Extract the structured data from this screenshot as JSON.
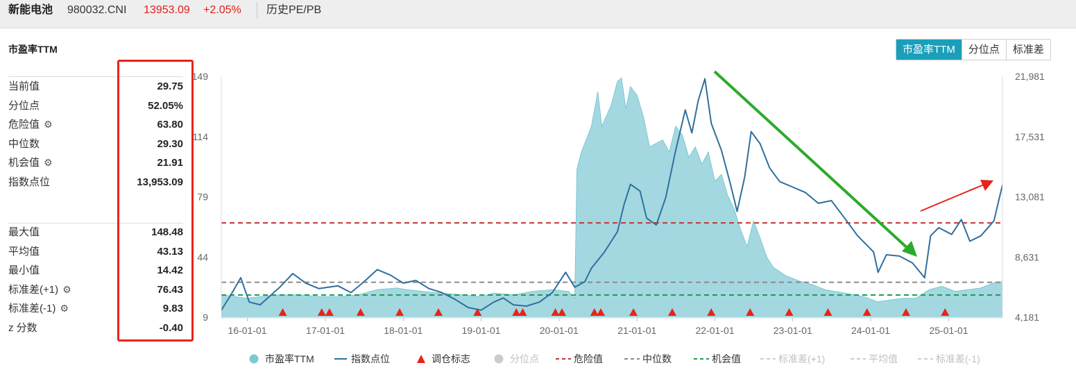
{
  "header": {
    "name": "新能电池",
    "code": "980032.CNI",
    "price": "13953.09",
    "change": "+2.05%",
    "link": "历史PE/PB"
  },
  "panel": {
    "title": "市盈率TTM",
    "stats_top": [
      {
        "label": "当前值",
        "value": "29.75",
        "gear": false
      },
      {
        "label": "分位点",
        "value": "52.05%",
        "gear": false
      },
      {
        "label": "危险值",
        "value": "63.80",
        "gear": true
      },
      {
        "label": "中位数",
        "value": "29.30",
        "gear": false
      },
      {
        "label": "机会值",
        "value": "21.91",
        "gear": true
      },
      {
        "label": "指数点位",
        "value": "13,953.09",
        "gear": false
      }
    ],
    "stats_bottom": [
      {
        "label": "最大值",
        "value": "148.48",
        "gear": false
      },
      {
        "label": "平均值",
        "value": "43.13",
        "gear": false
      },
      {
        "label": "最小值",
        "value": "14.42",
        "gear": false
      },
      {
        "label": "标准差(+1)",
        "value": "76.43",
        "gear": true
      },
      {
        "label": "标准差(-1)",
        "value": "9.83",
        "gear": true
      },
      {
        "label": "z 分数",
        "value": "-0.40",
        "gear": false
      }
    ]
  },
  "tabs": [
    {
      "label": "市盈率TTM",
      "active": true
    },
    {
      "label": "分位点",
      "active": false
    },
    {
      "label": "标准差",
      "active": false
    }
  ],
  "icons": {
    "gear": "gear-icon"
  },
  "colors": {
    "pe_fill": "#9fd6de",
    "pe_line": "#7cc8d3",
    "index_line": "#2e6f9e",
    "danger": "#c23531",
    "median": "#8a8a8a",
    "opportunity": "#1f9a55",
    "marker": "#e8231b",
    "accent": "#1a9fba",
    "highlight_box": "#e8231b",
    "arrow_down": "#2bab2b",
    "arrow_up": "#e8231b"
  },
  "chart_data": {
    "type": "area",
    "x_ticks": [
      "16-01-01",
      "17-01-01",
      "18-01-01",
      "19-01-01",
      "20-01-01",
      "21-01-01",
      "22-01-01",
      "23-01-01",
      "24-01-01",
      "25-01-01"
    ],
    "x_range": [
      "2015-09-01",
      "2025-09-10"
    ],
    "y_left": {
      "ticks": [
        "149",
        "114",
        "79",
        "44",
        "9"
      ],
      "range": [
        9,
        149
      ]
    },
    "y_right": {
      "ticks": [
        "21,981",
        "17,531",
        "13,081",
        "8,631",
        "4,181"
      ],
      "range": [
        4181,
        21981
      ]
    },
    "reference_lines": [
      {
        "name": "危险值",
        "value": 63.8,
        "style": "dashed"
      },
      {
        "name": "中位数",
        "value": 29.3,
        "style": "dashed"
      },
      {
        "name": "机会值",
        "value": 21.91,
        "style": "dashed"
      }
    ],
    "series": [
      {
        "name": "市盈率TTM",
        "axis": "left",
        "kind": "area",
        "points": [
          [
            "2015-09-01",
            22
          ],
          [
            "2015-11-01",
            21
          ],
          [
            "2016-01-01",
            20
          ],
          [
            "2016-03-01",
            21
          ],
          [
            "2016-06-01",
            22
          ],
          [
            "2016-09-01",
            22
          ],
          [
            "2016-12-01",
            21
          ],
          [
            "2017-03-01",
            21
          ],
          [
            "2017-06-01",
            22
          ],
          [
            "2017-09-01",
            25
          ],
          [
            "2017-12-01",
            26
          ],
          [
            "2018-01-15",
            25
          ],
          [
            "2018-04-01",
            24
          ],
          [
            "2018-07-01",
            23
          ],
          [
            "2018-10-01",
            22
          ],
          [
            "2019-01-01",
            21
          ],
          [
            "2019-03-01",
            23
          ],
          [
            "2019-06-01",
            22
          ],
          [
            "2019-09-01",
            24
          ],
          [
            "2019-12-01",
            25
          ],
          [
            "2020-02-15",
            24
          ],
          [
            "2020-03-15",
            20
          ],
          [
            "2020-03-25",
            95
          ],
          [
            "2020-04-15",
            105
          ],
          [
            "2020-06-01",
            120
          ],
          [
            "2020-07-01",
            140
          ],
          [
            "2020-07-20",
            120
          ],
          [
            "2020-09-01",
            132
          ],
          [
            "2020-10-01",
            146
          ],
          [
            "2020-10-20",
            148
          ],
          [
            "2020-11-10",
            130
          ],
          [
            "2020-12-01",
            143
          ],
          [
            "2021-01-01",
            138
          ],
          [
            "2021-02-01",
            125
          ],
          [
            "2021-03-01",
            108
          ],
          [
            "2021-05-01",
            112
          ],
          [
            "2021-06-01",
            105
          ],
          [
            "2021-07-01",
            120
          ],
          [
            "2021-08-01",
            115
          ],
          [
            "2021-09-01",
            102
          ],
          [
            "2021-10-01",
            108
          ],
          [
            "2021-11-01",
            98
          ],
          [
            "2021-12-01",
            105
          ],
          [
            "2022-01-01",
            88
          ],
          [
            "2022-02-01",
            92
          ],
          [
            "2022-03-01",
            80
          ],
          [
            "2022-04-01",
            72
          ],
          [
            "2022-05-01",
            60
          ],
          [
            "2022-06-01",
            50
          ],
          [
            "2022-07-01",
            65
          ],
          [
            "2022-08-01",
            55
          ],
          [
            "2022-09-01",
            44
          ],
          [
            "2022-10-01",
            38
          ],
          [
            "2022-12-01",
            33
          ],
          [
            "2023-02-01",
            30
          ],
          [
            "2023-04-01",
            28
          ],
          [
            "2023-06-01",
            25
          ],
          [
            "2023-09-01",
            23
          ],
          [
            "2023-12-01",
            21
          ],
          [
            "2024-02-01",
            18
          ],
          [
            "2024-04-01",
            19
          ],
          [
            "2024-06-01",
            20
          ],
          [
            "2024-08-01",
            20
          ],
          [
            "2024-10-01",
            25
          ],
          [
            "2024-12-01",
            27
          ],
          [
            "2025-02-01",
            24
          ],
          [
            "2025-04-01",
            25
          ],
          [
            "2025-06-01",
            26
          ],
          [
            "2025-08-01",
            29
          ],
          [
            "2025-09-10",
            29.75
          ]
        ]
      },
      {
        "name": "指数点位",
        "axis": "right",
        "kind": "line",
        "points": [
          [
            "2015-09-01",
            4700
          ],
          [
            "2015-10-15",
            5800
          ],
          [
            "2015-12-01",
            7100
          ],
          [
            "2016-01-10",
            5300
          ],
          [
            "2016-03-01",
            5100
          ],
          [
            "2016-06-01",
            6400
          ],
          [
            "2016-08-01",
            7400
          ],
          [
            "2016-10-01",
            6700
          ],
          [
            "2016-12-01",
            6300
          ],
          [
            "2017-03-01",
            6500
          ],
          [
            "2017-05-01",
            6000
          ],
          [
            "2017-07-01",
            6800
          ],
          [
            "2017-09-01",
            7700
          ],
          [
            "2017-11-01",
            7300
          ],
          [
            "2018-01-01",
            6700
          ],
          [
            "2018-03-01",
            6900
          ],
          [
            "2018-05-01",
            6300
          ],
          [
            "2018-07-01",
            6000
          ],
          [
            "2018-09-01",
            5500
          ],
          [
            "2018-11-01",
            4900
          ],
          [
            "2019-01-01",
            4700
          ],
          [
            "2019-03-01",
            5300
          ],
          [
            "2019-04-15",
            5600
          ],
          [
            "2019-06-01",
            5100
          ],
          [
            "2019-08-01",
            5000
          ],
          [
            "2019-10-01",
            5300
          ],
          [
            "2019-12-01",
            6000
          ],
          [
            "2020-02-01",
            7500
          ],
          [
            "2020-03-15",
            6400
          ],
          [
            "2020-05-01",
            6800
          ],
          [
            "2020-06-01",
            7800
          ],
          [
            "2020-08-01",
            9000
          ],
          [
            "2020-10-01",
            10500
          ],
          [
            "2020-11-01",
            12500
          ],
          [
            "2020-12-01",
            14000
          ],
          [
            "2021-01-15",
            13500
          ],
          [
            "2021-02-15",
            11500
          ],
          [
            "2021-04-01",
            11000
          ],
          [
            "2021-05-15",
            13000
          ],
          [
            "2021-07-01",
            16500
          ],
          [
            "2021-08-15",
            19500
          ],
          [
            "2021-09-15",
            17800
          ],
          [
            "2021-10-15",
            20200
          ],
          [
            "2021-11-15",
            21800
          ],
          [
            "2021-12-15",
            18500
          ],
          [
            "2022-02-01",
            16500
          ],
          [
            "2022-03-15",
            14000
          ],
          [
            "2022-04-15",
            12000
          ],
          [
            "2022-05-20",
            14500
          ],
          [
            "2022-06-20",
            17900
          ],
          [
            "2022-08-01",
            17000
          ],
          [
            "2022-09-15",
            15200
          ],
          [
            "2022-11-01",
            14200
          ],
          [
            "2023-01-01",
            13800
          ],
          [
            "2023-03-01",
            13400
          ],
          [
            "2023-05-01",
            12600
          ],
          [
            "2023-07-01",
            12800
          ],
          [
            "2023-09-01",
            11500
          ],
          [
            "2023-11-01",
            10200
          ],
          [
            "2024-01-15",
            9000
          ],
          [
            "2024-02-05",
            7500
          ],
          [
            "2024-03-15",
            8800
          ],
          [
            "2024-05-15",
            8700
          ],
          [
            "2024-07-15",
            8200
          ],
          [
            "2024-09-10",
            7100
          ],
          [
            "2024-10-08",
            10200
          ],
          [
            "2024-11-15",
            10800
          ],
          [
            "2025-01-15",
            10300
          ],
          [
            "2025-03-01",
            11400
          ],
          [
            "2025-04-10",
            9800
          ],
          [
            "2025-06-01",
            10200
          ],
          [
            "2025-08-01",
            11300
          ],
          [
            "2025-09-10",
            13953
          ]
        ]
      },
      {
        "name": "调仓标志",
        "kind": "marker",
        "dates": [
          "2016-06-15",
          "2016-12-15",
          "2017-01-20",
          "2017-06-15",
          "2017-12-15",
          "2018-06-15",
          "2018-12-15",
          "2019-06-15",
          "2019-07-15",
          "2019-12-15",
          "2020-01-15",
          "2020-06-15",
          "2020-07-15",
          "2020-12-15",
          "2021-06-15",
          "2021-12-15",
          "2022-06-15",
          "2022-12-15",
          "2023-06-15",
          "2023-12-15",
          "2024-06-15",
          "2024-12-15"
        ]
      }
    ],
    "legend": [
      {
        "label": "市盈率TTM",
        "kind": "dot",
        "color": "#7cc8d3"
      },
      {
        "label": "指数点位",
        "kind": "line",
        "color": "#2e6f9e"
      },
      {
        "label": "调仓标志",
        "kind": "triangle",
        "color": "#e8231b"
      },
      {
        "label": "分位点",
        "kind": "dot",
        "color": "#cccccc",
        "muted": true
      },
      {
        "label": "危险值",
        "kind": "dash",
        "color": "#c23531"
      },
      {
        "label": "中位数",
        "kind": "dash",
        "color": "#8a8a8a"
      },
      {
        "label": "机会值",
        "kind": "dash",
        "color": "#1f9a55"
      },
      {
        "label": "标准差(+1)",
        "kind": "dash",
        "color": "#cccccc",
        "muted": true
      },
      {
        "label": "平均值",
        "kind": "dash",
        "color": "#cccccc",
        "muted": true
      },
      {
        "label": "标准差(-1)",
        "kind": "dash",
        "color": "#cccccc",
        "muted": true
      }
    ],
    "legend_position": "bottom"
  }
}
